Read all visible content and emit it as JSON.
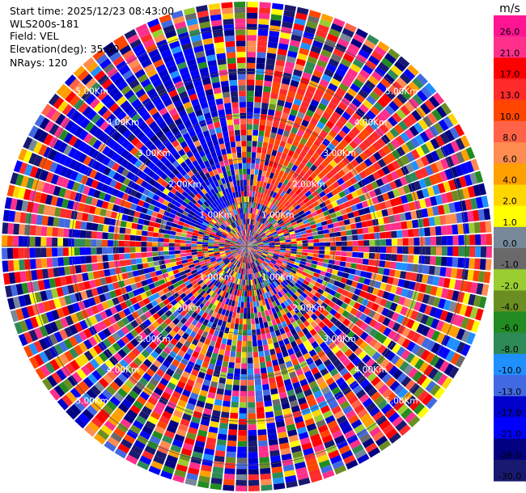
{
  "info": {
    "start_time": "Start time: 2025/12/23 08:43:00",
    "instrument": "WLS200s-181",
    "field": "Field: VEL",
    "elevation": "Elevation(deg): 35.00",
    "nrays": "NRays: 120"
  },
  "colorbar": {
    "unit": "m/s",
    "ticks": [
      "26.0",
      "21.0",
      "17.0",
      "13.0",
      "10.0",
      "8.0",
      "6.0",
      "4.0",
      "2.0",
      "1.0",
      "0.0",
      "-1.0",
      "-2.0",
      "-4.0",
      "-6.0",
      "-8.0",
      "-10.0",
      "-13.0",
      "-17.0",
      "-21.0",
      "-26.0",
      "-30.0"
    ]
  },
  "range_labels": [
    "1.00Km",
    "2.00Km",
    "3.00Km",
    "4.00Km",
    "5.00Km"
  ],
  "colors": {
    "palette": [
      "#ff1493",
      "#ff2f8c",
      "#ff0000",
      "#ff2a2a",
      "#ff4500",
      "#ff6347",
      "#ff8c50",
      "#ffa000",
      "#ffd700",
      "#ffff00",
      "#778899",
      "#696969",
      "#9acd32",
      "#6b8e23",
      "#228b22",
      "#2e8b57",
      "#1e90ff",
      "#4169e1",
      "#0000cd",
      "#0000ff",
      "#000080",
      "#191970"
    ]
  },
  "chart_data": {
    "type": "heatmap",
    "projection": "polar PPI",
    "field": "VEL",
    "units": "m/s",
    "nrays": 120,
    "elevation_deg": 35.0,
    "range_rings_km": [
      1,
      2,
      3,
      4,
      5
    ],
    "max_range_km": 5.6,
    "color_levels": [
      26.0,
      21.0,
      17.0,
      13.0,
      10.0,
      8.0,
      6.0,
      4.0,
      2.0,
      1.0,
      0.0,
      -1.0,
      -2.0,
      -4.0,
      -6.0,
      -8.0,
      -10.0,
      -13.0,
      -17.0,
      -21.0,
      -26.0,
      -30.0
    ],
    "features": [
      {
        "azimuth_range_deg": [
          290,
          350
        ],
        "range_km": [
          1.0,
          5.0
        ],
        "velocity_ms": -17.0
      },
      {
        "azimuth_range_deg": [
          10,
          60
        ],
        "range_km": [
          1.0,
          4.0
        ],
        "velocity_ms": 13.0
      }
    ]
  }
}
